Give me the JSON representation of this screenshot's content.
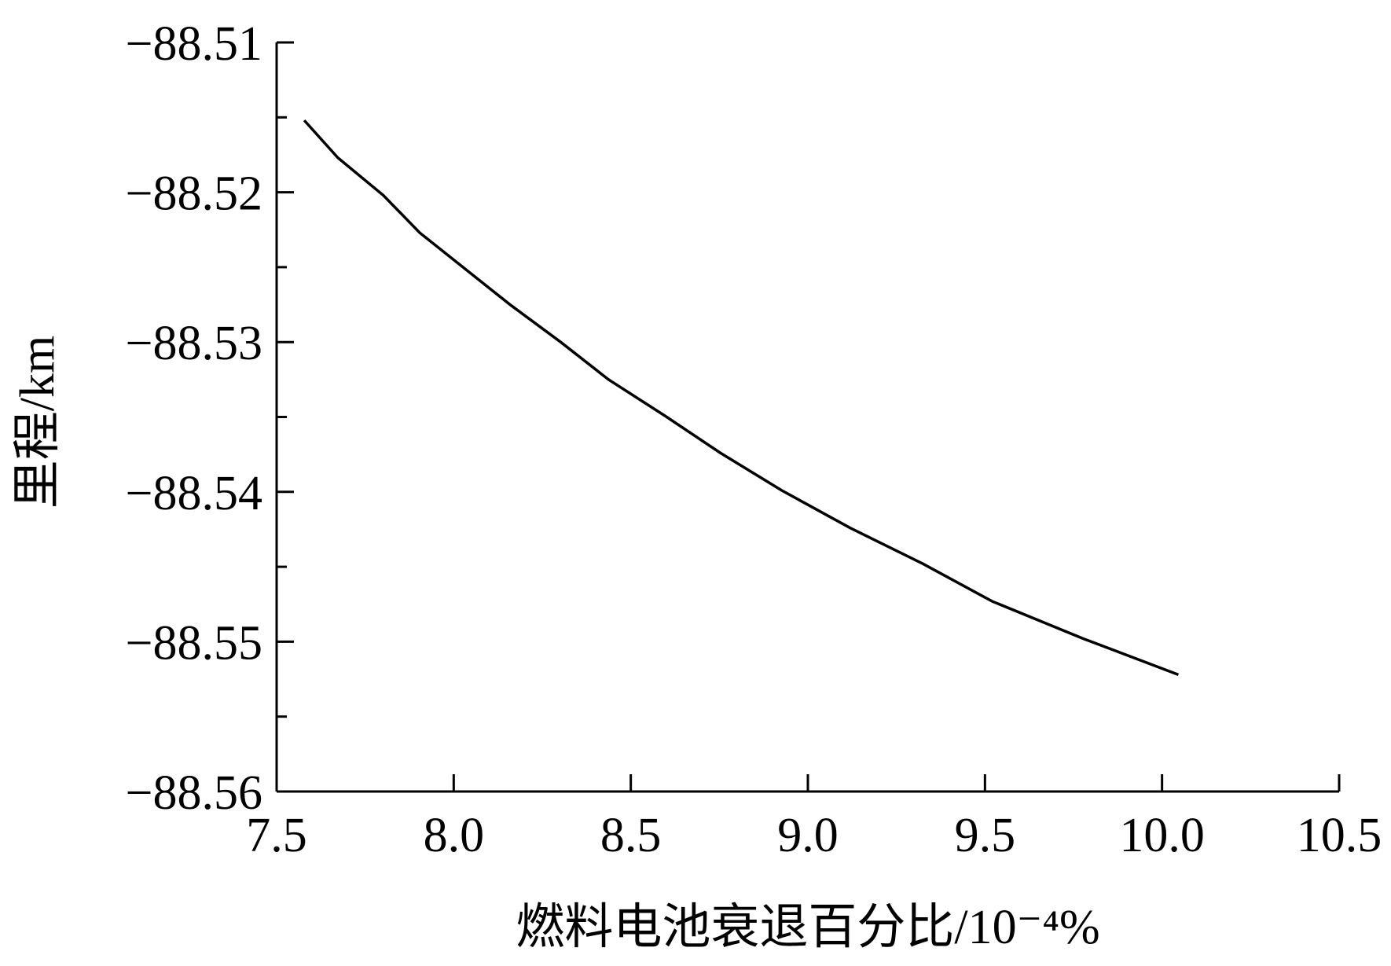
{
  "chart_data": {
    "type": "line",
    "x_label": "燃料电池衰退百分比/10⁻⁴%",
    "y_label": "里程/km",
    "x": [
      7.578,
      7.673,
      7.801,
      7.904,
      8.159,
      8.302,
      8.437,
      8.595,
      8.753,
      8.926,
      9.119,
      9.325,
      9.52,
      9.778,
      10.046
    ],
    "values": [
      -88.5152,
      -88.5177,
      -88.5202,
      -88.5227,
      -88.5275,
      -88.53,
      -88.5325,
      -88.5349,
      -88.5374,
      -88.5399,
      -88.5424,
      -88.5448,
      -88.5473,
      -88.5498,
      -88.5522
    ],
    "color": "#000000",
    "xlim": [
      7.5,
      10.5
    ],
    "xticks": [
      {
        "value": 7.5,
        "label": "7.5"
      },
      {
        "value": 8,
        "label": "8.0"
      },
      {
        "value": 8.5,
        "label": "8.5"
      },
      {
        "value": 9,
        "label": "9.0"
      },
      {
        "value": 9.5,
        "label": "9.5"
      },
      {
        "value": 10,
        "label": "10.0"
      },
      {
        "value": 10.5,
        "label": "10.5"
      }
    ],
    "ylim": [
      -88.56,
      -88.51
    ],
    "yticks": [
      {
        "value": -88.51,
        "label": "−88.51"
      },
      {
        "value": -88.52,
        "label": "−88.52"
      },
      {
        "value": -88.53,
        "label": "−88.53"
      },
      {
        "value": -88.54,
        "label": "−88.54"
      },
      {
        "value": -88.55,
        "label": "−88.55"
      },
      {
        "value": -88.56,
        "label": "−88.56"
      }
    ],
    "yticks_minor": [
      -88.515,
      -88.525,
      -88.535,
      -88.545,
      -88.555
    ],
    "grid": false
  }
}
